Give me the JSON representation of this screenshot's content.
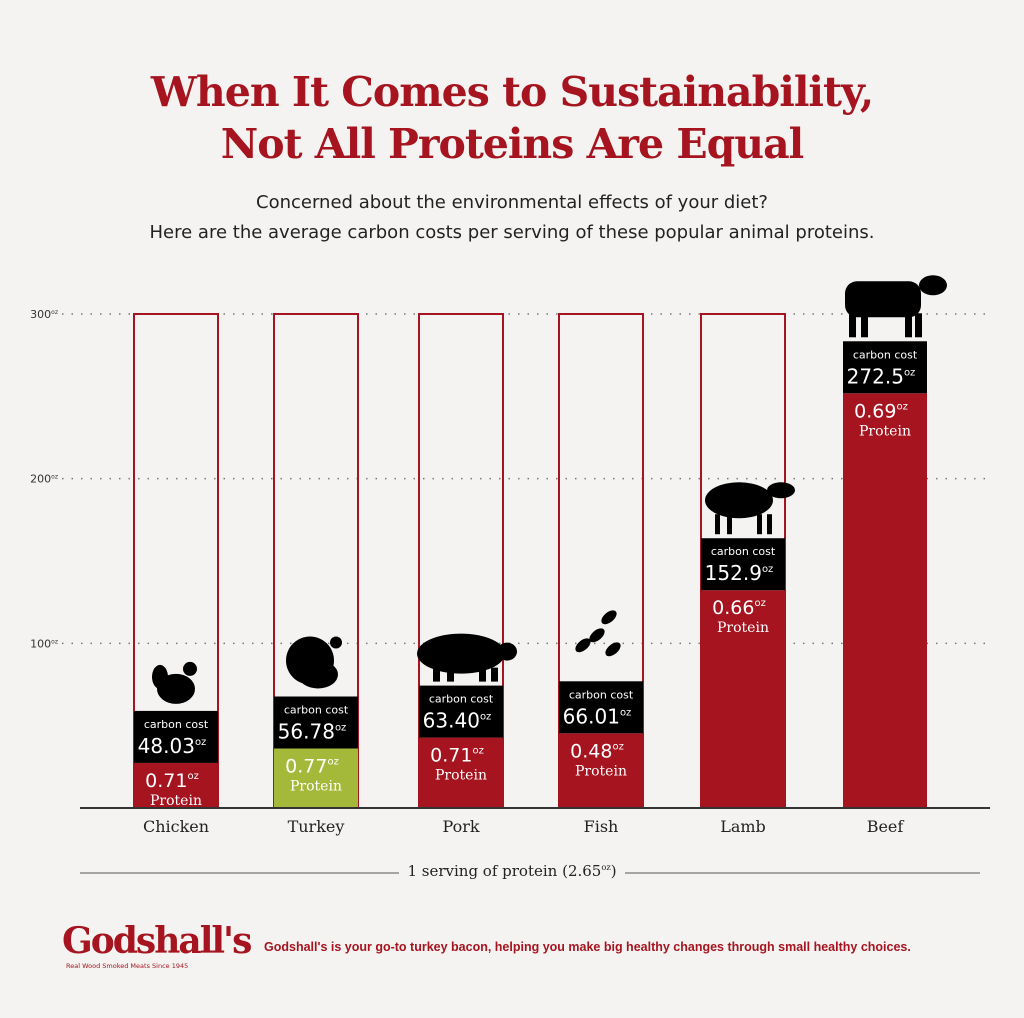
{
  "title_line1": "When It Comes to Sustainability,",
  "title_line2": "Not All Proteins Are Equal",
  "subtitle_line1": "Concerned about the environmental effects of your diet?",
  "subtitle_line2": "Here are the average carbon costs per serving of these popular animal proteins.",
  "chart_data": {
    "type": "bar",
    "categories": [
      "Chicken",
      "Turkey",
      "Pork",
      "Fish",
      "Lamb",
      "Beef"
    ],
    "series": [
      {
        "name": "carbon cost",
        "values": [
          48.03,
          56.78,
          63.4,
          66.01,
          152.9,
          272.5
        ]
      },
      {
        "name": "Protein",
        "values": [
          0.71,
          0.77,
          0.71,
          0.48,
          0.66,
          0.69
        ]
      }
    ],
    "carbon_labels": [
      "48.03",
      "56.78",
      "63.40",
      "66.01",
      "152.9",
      "272.5"
    ],
    "protein_labels": [
      "0.71",
      "0.77",
      "0.71",
      "0.48",
      "0.66",
      "0.69"
    ],
    "carbon_label_text": "carbon cost",
    "protein_label_text": "Protein",
    "unit": "oz",
    "icons": [
      "chicken-icon",
      "turkey-icon",
      "pig-icon",
      "fish-icon",
      "sheep-icon",
      "cow-icon"
    ],
    "yticks": [
      100,
      200,
      300
    ],
    "ytick_labels": [
      "100",
      "200",
      "300"
    ],
    "ylim": [
      0,
      300
    ],
    "grid": "dotted",
    "xlabel": "1 serving of protein (2.65oz)",
    "colors": {
      "bar": "#a5141f",
      "highlight": "#a4b93a",
      "label_box": "#000000"
    }
  },
  "serving_text": "1 serving of protein (2.65",
  "serving_unit": "oz",
  "serving_close": ")",
  "logo": "Godshall's",
  "logo_tagline": "Real Wood Smoked Meats Since 1945",
  "footer": "Godshall's is your go-to turkey bacon, helping you make big  healthy changes through small healthy choices."
}
